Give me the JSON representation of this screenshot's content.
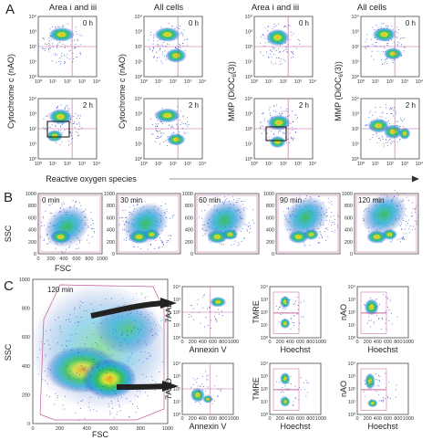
{
  "panels": {
    "A": {
      "letter": "A",
      "column_titles": [
        "Area i and iii",
        "All cells",
        "Area i and iii",
        "All cells"
      ],
      "time_labels": [
        "0 h",
        "2 h"
      ],
      "y_labels": [
        "Cytochrome c (nAO)",
        "Cytochrome c (nAO)",
        "MMP (DiOC",
        "MMP (DiOC"
      ],
      "y_label_sub": "6",
      "y_label_suffix": "(3))",
      "x_label": "Reactive oxygen species",
      "log_ticks": [
        "10⁰",
        "10¹",
        "10²",
        "10³",
        "10⁴"
      ]
    },
    "B": {
      "letter": "B",
      "time_labels": [
        "0 min",
        "30 min",
        "60 min",
        "90 min",
        "120 min"
      ],
      "y_label": "SSC",
      "x_label": "FSC",
      "y_ticks": [
        "0",
        "200",
        "400",
        "600",
        "800",
        "1000"
      ],
      "x_ticks": [
        "0",
        "200",
        "400",
        "600",
        "800",
        "1000"
      ]
    },
    "C": {
      "letter": "C",
      "main_time_label": "120 min",
      "main_y_label": "SSC",
      "main_x_label": "FSC",
      "main_y_ticks": [
        "0",
        "200",
        "400",
        "600",
        "800",
        "1000"
      ],
      "main_x_ticks": [
        "0",
        "200",
        "400",
        "600",
        "800",
        "1000"
      ],
      "small_x_labels": [
        "Annexin V",
        "Hoechst",
        "Hoechst"
      ],
      "small_y_labels": [
        "7AAD",
        "TMRE",
        "nAO"
      ],
      "small_x_ticks": [
        "0",
        "200",
        "400",
        "600",
        "800",
        "1000"
      ],
      "log_ticks": [
        "10⁰",
        "10¹",
        "10²",
        "10³",
        "10⁴"
      ]
    }
  },
  "colors": {
    "low": "#2b3fbf",
    "mid": "#1fa7d6",
    "high": "#9bd43a",
    "peak": "#f2a020",
    "gate": "#c45a9a"
  }
}
